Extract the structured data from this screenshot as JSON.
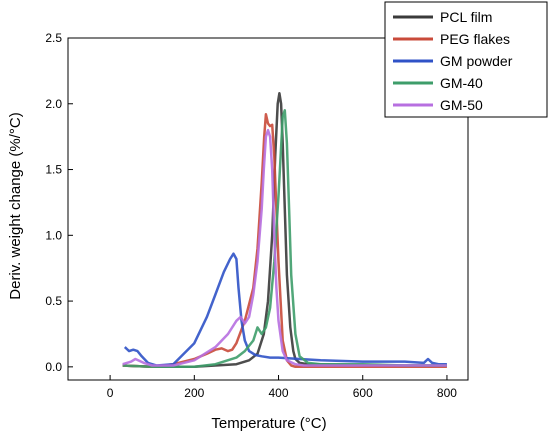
{
  "chart_data": {
    "type": "line",
    "xlabel": "Temperature (°C)",
    "ylabel": "Deriv. weight change (%/°C)",
    "xlim": [
      -100,
      850
    ],
    "ylim": [
      -0.1,
      2.5
    ],
    "xticks": [
      "0",
      "200",
      "400",
      "600",
      "800"
    ],
    "yticks": [
      "0.0",
      "0.5",
      "1.0",
      "1.5",
      "2.0",
      "2.5"
    ],
    "legend_position": "top-right",
    "series": [
      {
        "name": "PCL film",
        "color": "#3a3a3a",
        "x": [
          30,
          100,
          200,
          250,
          300,
          330,
          350,
          365,
          375,
          385,
          392,
          398,
          402,
          406,
          410,
          415,
          420,
          428,
          435,
          440,
          450,
          470,
          500,
          600,
          700,
          800
        ],
        "y": [
          0.01,
          0.0,
          0.0,
          0.01,
          0.02,
          0.05,
          0.1,
          0.25,
          0.5,
          1.0,
          1.6,
          2.0,
          2.08,
          2.0,
          1.7,
          1.2,
          0.7,
          0.3,
          0.12,
          0.06,
          0.03,
          0.02,
          0.02,
          0.01,
          0.01,
          0.01
        ]
      },
      {
        "name": "PEG flakes",
        "color": "#c94a3a",
        "x": [
          30,
          100,
          150,
          200,
          230,
          250,
          265,
          280,
          290,
          300,
          320,
          340,
          350,
          360,
          366,
          370,
          375,
          380,
          385,
          390,
          395,
          400,
          405,
          410,
          420,
          430,
          440,
          460,
          500,
          600,
          700,
          800
        ],
        "y": [
          0.01,
          0.0,
          0.02,
          0.06,
          0.1,
          0.13,
          0.14,
          0.12,
          0.13,
          0.18,
          0.35,
          0.6,
          0.9,
          1.4,
          1.75,
          1.92,
          1.85,
          1.83,
          1.84,
          1.6,
          1.2,
          0.8,
          0.5,
          0.2,
          0.05,
          0.01,
          0.0,
          0.0,
          0.0,
          0.0,
          0.0,
          0.0
        ]
      },
      {
        "name": "GM powder",
        "color": "#2f52c7",
        "x": [
          35,
          45,
          55,
          65,
          75,
          90,
          110,
          150,
          200,
          230,
          250,
          270,
          285,
          293,
          300,
          305,
          312,
          320,
          330,
          345,
          360,
          380,
          400,
          450,
          500,
          600,
          700,
          745,
          755,
          765,
          780,
          800
        ],
        "y": [
          0.15,
          0.12,
          0.13,
          0.12,
          0.08,
          0.03,
          0.01,
          0.02,
          0.18,
          0.38,
          0.55,
          0.72,
          0.82,
          0.86,
          0.82,
          0.6,
          0.35,
          0.2,
          0.12,
          0.09,
          0.08,
          0.07,
          0.07,
          0.06,
          0.05,
          0.04,
          0.04,
          0.03,
          0.06,
          0.03,
          0.02,
          0.02
        ]
      },
      {
        "name": "GM-40",
        "color": "#3e9d6a",
        "x": [
          30,
          100,
          200,
          250,
          300,
          320,
          340,
          350,
          360,
          370,
          380,
          390,
          400,
          405,
          410,
          415,
          420,
          425,
          430,
          440,
          450,
          470,
          500,
          600,
          700,
          800
        ],
        "y": [
          0.01,
          0.0,
          0.0,
          0.02,
          0.07,
          0.12,
          0.2,
          0.3,
          0.25,
          0.3,
          0.45,
          0.8,
          1.3,
          1.6,
          1.9,
          1.95,
          1.7,
          1.2,
          0.7,
          0.25,
          0.08,
          0.03,
          0.02,
          0.02,
          0.01,
          0.01
        ]
      },
      {
        "name": "GM-50",
        "color": "#b76fe0",
        "x": [
          30,
          50,
          60,
          80,
          100,
          150,
          200,
          250,
          280,
          300,
          310,
          320,
          330,
          340,
          350,
          360,
          365,
          370,
          375,
          380,
          385,
          390,
          395,
          400,
          410,
          420,
          440,
          460,
          500,
          600,
          700,
          800
        ],
        "y": [
          0.02,
          0.04,
          0.06,
          0.03,
          0.01,
          0.01,
          0.05,
          0.15,
          0.25,
          0.35,
          0.38,
          0.33,
          0.38,
          0.55,
          0.8,
          1.2,
          1.5,
          1.75,
          1.8,
          1.75,
          1.5,
          1.0,
          0.6,
          0.35,
          0.12,
          0.05,
          0.02,
          0.01,
          0.01,
          0.01,
          0.01,
          0.01
        ]
      }
    ]
  }
}
